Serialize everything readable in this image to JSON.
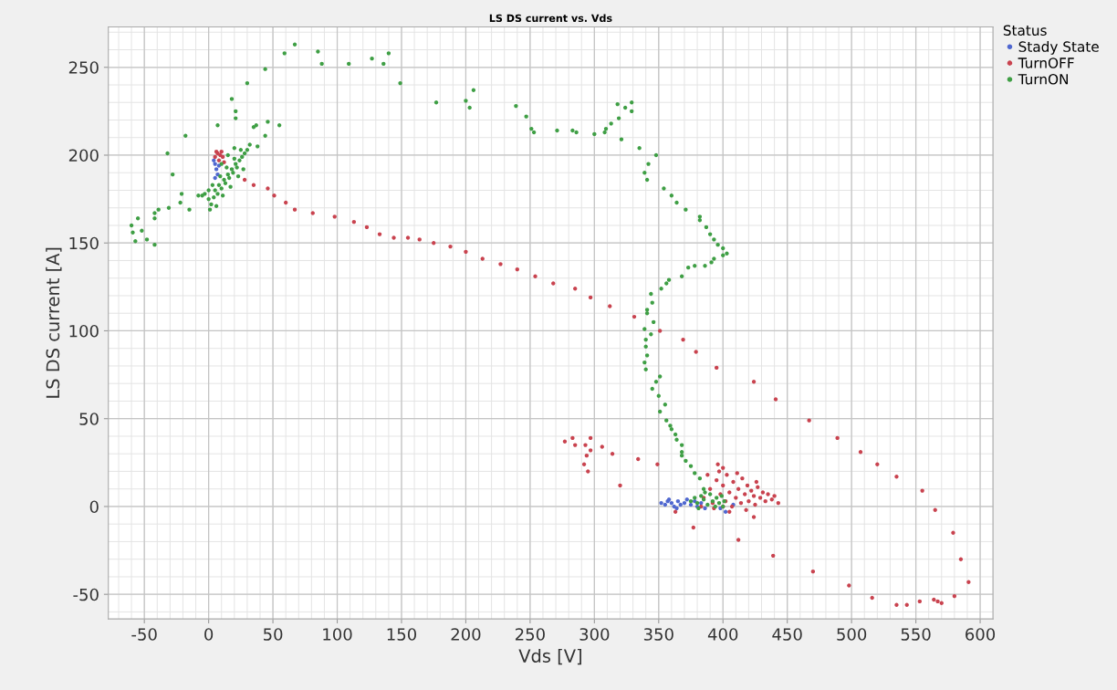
{
  "chart_data": {
    "type": "scatter",
    "title": "LS DS current vs. Vds",
    "xlabel": "Vds [V]",
    "ylabel": "LS DS current [A]",
    "legend_title": "Status",
    "legend": "top right",
    "marker": "circle",
    "grid": true,
    "xlim": [
      -78,
      610
    ],
    "ylim": [
      -64,
      273
    ],
    "xticks": [
      -50,
      0,
      50,
      100,
      150,
      200,
      250,
      300,
      350,
      400,
      450,
      500,
      550,
      600
    ],
    "yticks": [
      -50,
      0,
      50,
      100,
      150,
      200,
      250
    ],
    "series": [
      {
        "name": "Stady State",
        "color": "#5068d0",
        "x": [
          5,
          6,
          7,
          4,
          8,
          5,
          352,
          355,
          357,
          360,
          362,
          365,
          367,
          370,
          372,
          375,
          378,
          380,
          383,
          386,
          398,
          402,
          405,
          408,
          358,
          364
        ],
        "values": [
          195,
          192,
          189,
          197,
          194,
          187,
          2,
          1,
          3,
          2,
          0,
          3,
          1,
          2,
          4,
          1,
          3,
          0,
          2,
          -1,
          -1,
          -3,
          null,
          1,
          4,
          -1
        ]
      },
      {
        "name": "TurnOFF",
        "color": "#c9434f",
        "x": [
          5,
          7,
          9,
          11,
          8,
          12,
          6,
          10,
          28,
          35,
          46,
          51,
          60,
          67,
          81,
          98,
          113,
          123,
          133,
          144,
          155,
          164,
          175,
          188,
          200,
          213,
          227,
          240,
          254,
          268,
          285,
          297,
          312,
          331,
          351,
          369,
          379,
          395,
          424,
          441,
          467,
          489,
          507,
          520,
          535,
          555,
          565,
          579,
          585,
          591,
          580,
          570,
          567,
          564,
          553,
          543,
          535,
          516,
          498,
          470,
          439,
          412,
          424,
          277,
          283,
          285,
          293,
          297,
          297,
          294,
          306,
          314,
          292,
          334,
          349,
          295,
          320,
          363,
          377,
          385,
          390,
          392,
          395,
          397,
          398,
          400,
          402,
          403,
          405,
          407,
          408,
          410,
          412,
          414,
          415,
          417,
          419,
          420,
          422,
          424,
          425,
          427,
          429,
          431,
          433,
          435,
          438,
          440,
          443,
          400,
          396,
          388,
          393,
          405,
          418,
          411,
          426,
          383,
          400
        ],
        "values": [
          199,
          201,
          200,
          199,
          197,
          196,
          202,
          202,
          186,
          183,
          181,
          177,
          173,
          169,
          167,
          165,
          162,
          159,
          155,
          153,
          153,
          152,
          150,
          148,
          145,
          141,
          138,
          135,
          131,
          127,
          124,
          119,
          114,
          108,
          100,
          95,
          88,
          79,
          71,
          61,
          49,
          39,
          31,
          24,
          17,
          9,
          -2,
          -15,
          -30,
          -43,
          -51,
          -55,
          -54,
          -53,
          -54,
          -56,
          -56,
          -52,
          -45,
          -37,
          -28,
          -19,
          -6,
          37,
          39,
          35,
          35,
          39,
          32,
          29,
          34,
          30,
          24,
          27,
          24,
          20,
          12,
          -3,
          -12,
          5,
          10,
          2,
          15,
          20,
          7,
          12,
          3,
          18,
          8,
          0,
          14,
          5,
          10,
          2,
          16,
          7,
          12,
          3,
          9,
          6,
          1,
          11,
          5,
          8,
          3,
          7,
          4,
          6,
          2,
          22,
          24,
          18,
          -1,
          -3,
          -2,
          19,
          14,
          0,
          0
        ]
      },
      {
        "name": "TurnON",
        "color": "#3f9f45",
        "x": [
          67,
          59,
          85,
          88,
          109,
          127,
          140,
          136,
          149,
          177,
          200,
          206,
          203,
          44,
          30,
          18,
          21,
          21,
          7,
          -18,
          -32,
          -28,
          -21,
          -22,
          -15,
          -31,
          -39,
          -42,
          -42,
          -55,
          -60,
          -59,
          -52,
          -48,
          -42,
          -57,
          46,
          55,
          35,
          37,
          44,
          38,
          -3,
          0,
          2,
          4,
          5,
          7,
          8,
          10,
          12,
          13,
          15,
          16,
          18,
          19,
          21,
          22,
          24,
          26,
          28,
          30,
          32,
          3,
          9,
          14,
          20,
          25,
          6,
          11,
          17,
          23,
          27,
          1,
          0,
          -5,
          -8,
          10,
          15,
          20,
          239,
          247,
          251,
          253,
          271,
          283,
          286,
          300,
          308,
          309,
          313,
          319,
          318,
          324,
          329,
          329,
          321,
          335,
          348,
          342,
          339,
          341,
          354,
          360,
          364,
          371,
          382,
          382,
          387,
          390,
          393,
          396,
          400,
          403,
          400,
          393,
          391,
          386,
          378,
          373,
          368,
          358,
          356,
          352,
          344,
          345,
          341,
          341,
          346,
          339,
          344,
          340,
          340,
          341,
          339,
          340,
          351,
          348,
          345,
          350,
          355,
          351,
          356,
          359,
          360,
          363,
          364,
          368,
          368,
          368,
          371,
          375,
          378,
          382,
          385,
          375,
          378,
          380,
          383,
          385,
          388,
          390,
          392,
          395,
          397,
          399,
          401,
          386,
          394,
          381,
          400
        ],
        "values": [
          263,
          258,
          259,
          252,
          252,
          255,
          258,
          252,
          241,
          230,
          231,
          237,
          227,
          249,
          241,
          232,
          225,
          221,
          217,
          211,
          201,
          189,
          178,
          173,
          169,
          170,
          169,
          167,
          164,
          164,
          160,
          156,
          157,
          152,
          149,
          151,
          219,
          217,
          216,
          217,
          211,
          205,
          178,
          175,
          172,
          176,
          180,
          178,
          183,
          181,
          186,
          184,
          189,
          187,
          192,
          190,
          195,
          193,
          197,
          199,
          201,
          203,
          206,
          183,
          188,
          193,
          198,
          203,
          171,
          177,
          182,
          188,
          192,
          169,
          180,
          177,
          177,
          195,
          200,
          204,
          228,
          222,
          215,
          213,
          214,
          214,
          213,
          212,
          213,
          215,
          218,
          221,
          229,
          227,
          225,
          230,
          209,
          204,
          200,
          195,
          190,
          186,
          181,
          177,
          173,
          169,
          165,
          163,
          159,
          155,
          152,
          149,
          147,
          144,
          143,
          141,
          139,
          137,
          137,
          136,
          131,
          129,
          127,
          124,
          121,
          116,
          112,
          110,
          105,
          101,
          98,
          95,
          91,
          86,
          82,
          78,
          74,
          71,
          67,
          63,
          58,
          54,
          49,
          46,
          44,
          41,
          38,
          35,
          31,
          29,
          26,
          23,
          19,
          16,
          10,
          3,
          5,
          2,
          6,
          4,
          1,
          7,
          3,
          5,
          2,
          6,
          3,
          8,
          0,
          -1,
          0
        ]
      }
    ]
  }
}
